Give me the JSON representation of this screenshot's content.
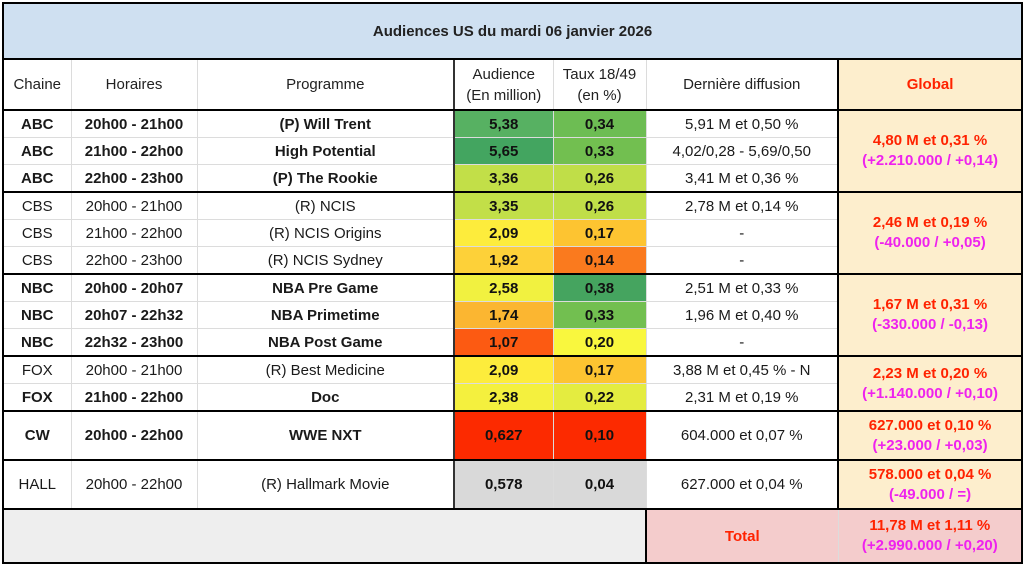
{
  "title": "Audiences US du mardi 06 janvier 2026",
  "headers": {
    "chaine": "Chaine",
    "horaires": "Horaires",
    "programme": "Programme",
    "audience_l1": "Audience",
    "audience_l2": "(En million)",
    "taux_l1": "Taux 18/49",
    "taux_l2": "(en %)",
    "derniere": "Dernière diffusion",
    "global": "Global"
  },
  "colors": {
    "title_bg": "#cfe0f1",
    "global_bg": "#fdeecd",
    "total_bg": "#f4cccc",
    "global_main_text": "#ff2200",
    "global_delta_text": "#ee22ee"
  },
  "rows": [
    {
      "chaine": "ABC",
      "horaires": "20h00 - 21h00",
      "programme": "(P) Will Trent",
      "audience": "5,38",
      "taux": "0,34",
      "derniere": "5,91 M et 0,50 %",
      "bold": true,
      "aud_color": "#57b162",
      "taux_color": "#6dbd53"
    },
    {
      "chaine": "ABC",
      "horaires": "21h00 - 22h00",
      "programme": "High Potential",
      "audience": "5,65",
      "taux": "0,33",
      "derniere": "4,02/0,28 - 5,69/0,50",
      "bold": true,
      "aud_color": "#43a560",
      "taux_color": "#72bf50"
    },
    {
      "chaine": "ABC",
      "horaires": "22h00 - 23h00",
      "programme": "(P) The Rookie",
      "audience": "3,36",
      "taux": "0,26",
      "derniere": "3,41 M et 0,36 %",
      "bold": true,
      "aud_color": "#c2df48",
      "taux_color": "#c0de48"
    },
    {
      "chaine": "CBS",
      "horaires": "20h00 - 21h00",
      "programme": "(R) NCIS",
      "audience": "3,35",
      "taux": "0,26",
      "derniere": "2,78 M et 0,14 %",
      "bold": false,
      "aud_color": "#c2df48",
      "taux_color": "#c0de48"
    },
    {
      "chaine": "CBS",
      "horaires": "21h00 - 22h00",
      "programme": "(R) NCIS Origins",
      "audience": "2,09",
      "taux": "0,17",
      "derniere": "-",
      "bold": false,
      "aud_color": "#fdec3c",
      "taux_color": "#fdc431"
    },
    {
      "chaine": "CBS",
      "horaires": "22h00 - 23h00",
      "programme": "(R) NCIS Sydney",
      "audience": "1,92",
      "taux": "0,14",
      "derniere": "-",
      "bold": false,
      "aud_color": "#fdd139",
      "taux_color": "#fa7a1e"
    },
    {
      "chaine": "NBC",
      "horaires": "20h00 - 20h07",
      "programme": "NBA Pre Game",
      "audience": "2,58",
      "taux": "0,38",
      "derniere": "2,51 M et 0,33 %",
      "bold": true,
      "aud_color": "#f1f140",
      "taux_color": "#45a45f"
    },
    {
      "chaine": "NBC",
      "horaires": "20h07 - 22h32",
      "programme": "NBA Primetime",
      "audience": "1,74",
      "taux": "0,33",
      "derniere": "1,96 M et 0,40 %",
      "bold": true,
      "aud_color": "#fbb631",
      "taux_color": "#72bf50"
    },
    {
      "chaine": "NBC",
      "horaires": "22h32 - 23h00",
      "programme": "NBA Post Game",
      "audience": "1,07",
      "taux": "0,20",
      "derniere": "-",
      "bold": true,
      "aud_color": "#fc5a12",
      "taux_color": "#f9f73e"
    },
    {
      "chaine": "FOX",
      "horaires": "20h00 - 21h00",
      "programme": "(R) Best Medicine",
      "audience": "2,09",
      "taux": "0,17",
      "derniere": "3,88 M et 0,45 % - N",
      "bold": false,
      "aud_color": "#fdec3c",
      "taux_color": "#fdc431"
    },
    {
      "chaine": "FOX",
      "horaires": "21h00 - 22h00",
      "programme": "Doc",
      "audience": "2,38",
      "taux": "0,22",
      "derniere": "2,31 M et 0,19 %",
      "bold": true,
      "aud_color": "#f4f03e",
      "taux_color": "#e4ec40"
    },
    {
      "chaine": "CW",
      "horaires": "20h00 - 22h00",
      "programme": "WWE NXT",
      "audience": "0,627",
      "taux": "0,10",
      "derniere": "604.000 et 0,07 %",
      "bold": true,
      "aud_color": "#fc2a00",
      "taux_color": "#fc2a00"
    },
    {
      "chaine": "HALL",
      "horaires": "20h00 - 22h00",
      "programme": "(R) Hallmark Movie",
      "audience": "0,578",
      "taux": "0,04",
      "derniere": "627.000 et 0,04 %",
      "bold": false,
      "aud_color": "#d9d9d9",
      "taux_color": "#d9d9d9"
    }
  ],
  "globals": [
    {
      "main": "4,80 M et 0,31 %",
      "delta": "(+2.210.000 / +0,14)"
    },
    {
      "main": "2,46 M et 0,19 %",
      "delta": "(-40.000 / +0,05)"
    },
    {
      "main": "1,67 M et 0,31 %",
      "delta": "(-330.000 / -0,13)"
    },
    {
      "main": "2,23 M et 0,20 %",
      "delta": "(+1.140.000 / +0,10)"
    },
    {
      "main": "627.000 et 0,10 %",
      "delta": "(+23.000 / +0,03)"
    },
    {
      "main": "578.000 et 0,04 %",
      "delta": "(-49.000 / =)"
    }
  ],
  "footer": {
    "total_label": "Total",
    "total_main": "11,78 M et 1,11 %",
    "total_delta": "(+2.990.000 / +0,20)"
  }
}
